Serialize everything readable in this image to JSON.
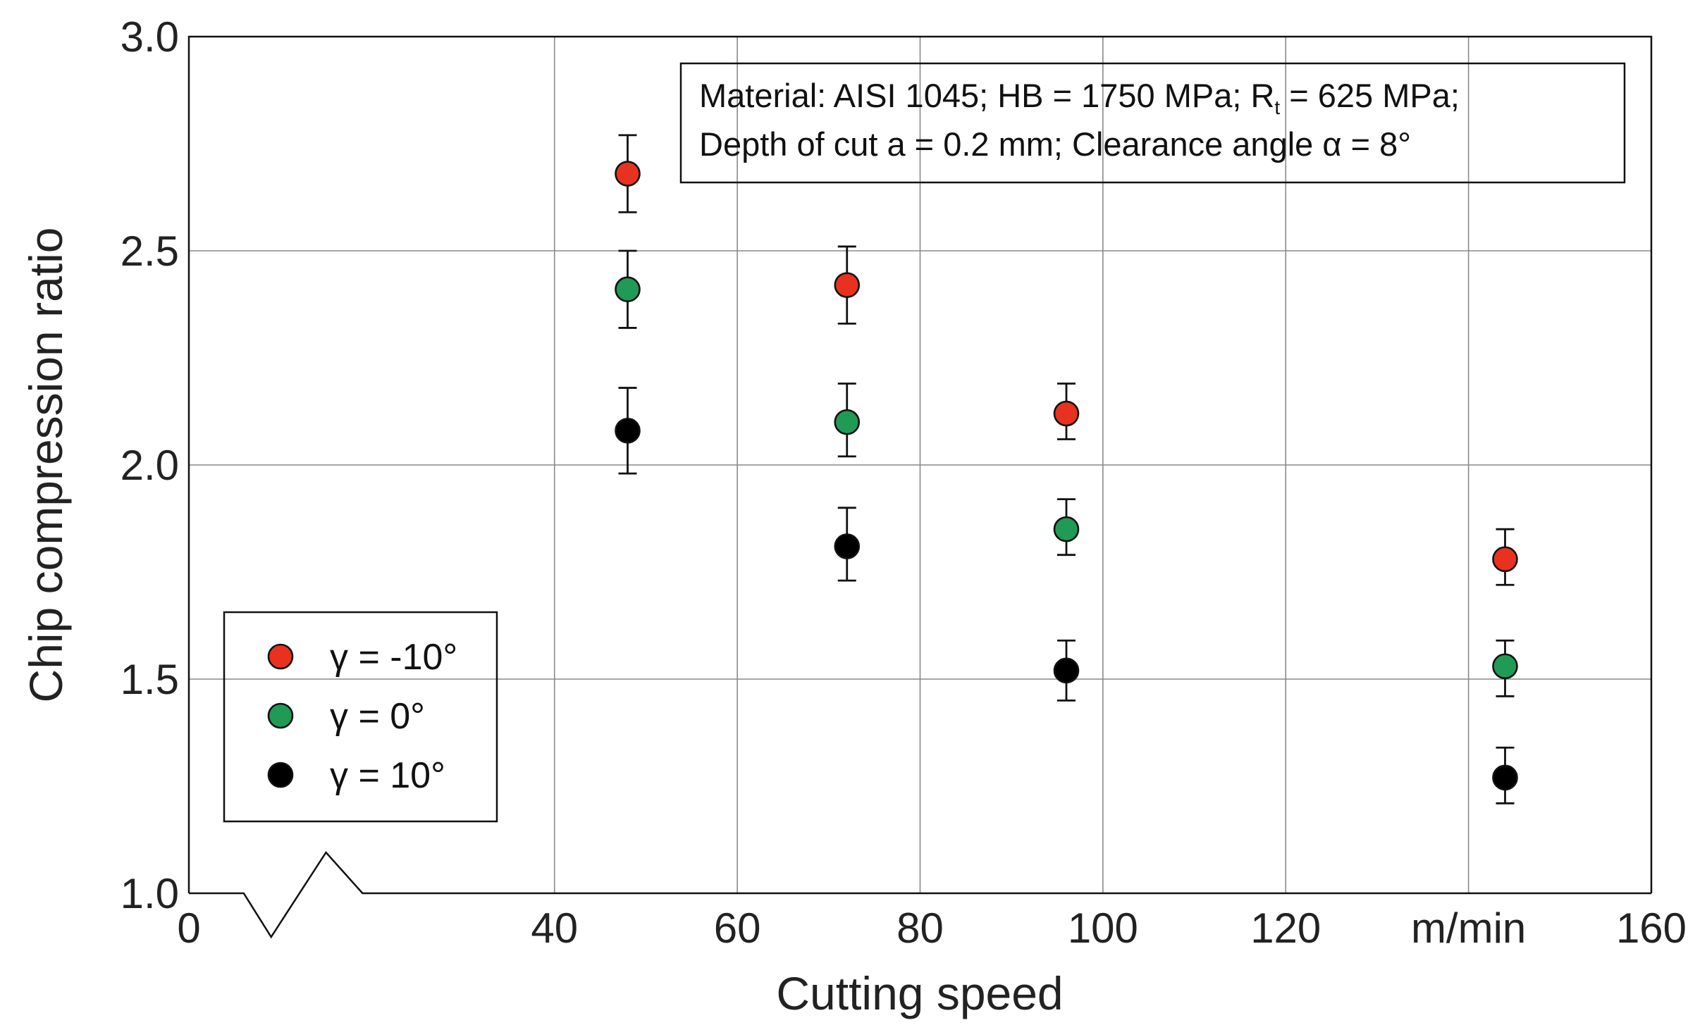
{
  "chart_data": {
    "type": "scatter",
    "title": "",
    "xlabel": "Cutting speed",
    "ylabel": "Chip compression ratio",
    "xlim": [
      0,
      160
    ],
    "ylim": [
      1.0,
      3.0
    ],
    "x_ticks": [
      "0",
      "40",
      "60",
      "80",
      "100",
      "120",
      "m/min",
      "160"
    ],
    "y_ticks": [
      "1.0",
      "1.5",
      "2.0",
      "2.5",
      "3.0"
    ],
    "grid": true,
    "axis_break": "x between 0 and 40",
    "annotation": {
      "line1_pre": "Material: AISI 1045; HB = 1750 MPa; R",
      "line1_sub": "t",
      "line1_post": " = 625 MPa;",
      "line2": "Depth of cut a = 0.2 mm; Clearance angle α = 8°"
    },
    "legend": {
      "position": "bottom-left"
    },
    "series": [
      {
        "name": "γ = -10°",
        "color": "#e8321f",
        "points": [
          {
            "x": 48,
            "y": 2.68,
            "err_low": 2.59,
            "err_high": 2.77
          },
          {
            "x": 72,
            "y": 2.42,
            "err_low": 2.33,
            "err_high": 2.51
          },
          {
            "x": 96,
            "y": 2.12,
            "err_low": 2.06,
            "err_high": 2.19
          },
          {
            "x": 144,
            "y": 1.78,
            "err_low": 1.72,
            "err_high": 1.85
          }
        ]
      },
      {
        "name": "γ = 0°",
        "color": "#1f9b55",
        "points": [
          {
            "x": 48,
            "y": 2.41,
            "err_low": 2.32,
            "err_high": 2.5
          },
          {
            "x": 72,
            "y": 2.1,
            "err_low": 2.02,
            "err_high": 2.19
          },
          {
            "x": 96,
            "y": 1.85,
            "err_low": 1.79,
            "err_high": 1.92
          },
          {
            "x": 144,
            "y": 1.53,
            "err_low": 1.46,
            "err_high": 1.59
          }
        ]
      },
      {
        "name": "γ = 10°",
        "color": "#000000",
        "points": [
          {
            "x": 48,
            "y": 2.08,
            "err_low": 1.98,
            "err_high": 2.18
          },
          {
            "x": 72,
            "y": 1.81,
            "err_low": 1.73,
            "err_high": 1.9
          },
          {
            "x": 96,
            "y": 1.52,
            "err_low": 1.45,
            "err_high": 1.59
          },
          {
            "x": 144,
            "y": 1.27,
            "err_low": 1.21,
            "err_high": 1.34
          }
        ]
      }
    ]
  }
}
